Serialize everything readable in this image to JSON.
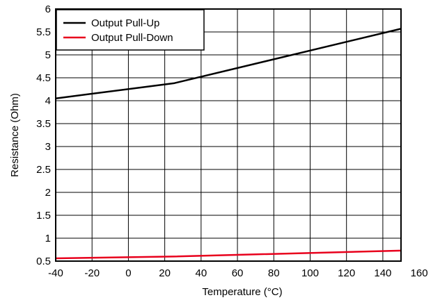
{
  "chart_data": {
    "type": "line",
    "xlabel": "Temperature (°C)",
    "ylabel": "Resistance (Ohm)",
    "xlim": [
      -40,
      160
    ],
    "ylim": [
      0.5,
      6
    ],
    "xticks": [
      -40,
      -20,
      0,
      20,
      40,
      60,
      80,
      100,
      120,
      140,
      160
    ],
    "yticks": [
      0.5,
      1,
      1.5,
      2,
      2.5,
      3,
      3.5,
      4,
      4.5,
      5,
      5.5,
      6
    ],
    "grid": true,
    "legend_position": "top-left",
    "series": [
      {
        "name": "Output Pull-Up",
        "color": "#000000",
        "x": [
          -40,
          25,
          150
        ],
        "y": [
          4.05,
          4.38,
          5.57
        ]
      },
      {
        "name": "Output Pull-Down",
        "color": "#e8001c",
        "x": [
          -40,
          25,
          150
        ],
        "y": [
          0.56,
          0.6,
          0.73
        ]
      }
    ]
  }
}
